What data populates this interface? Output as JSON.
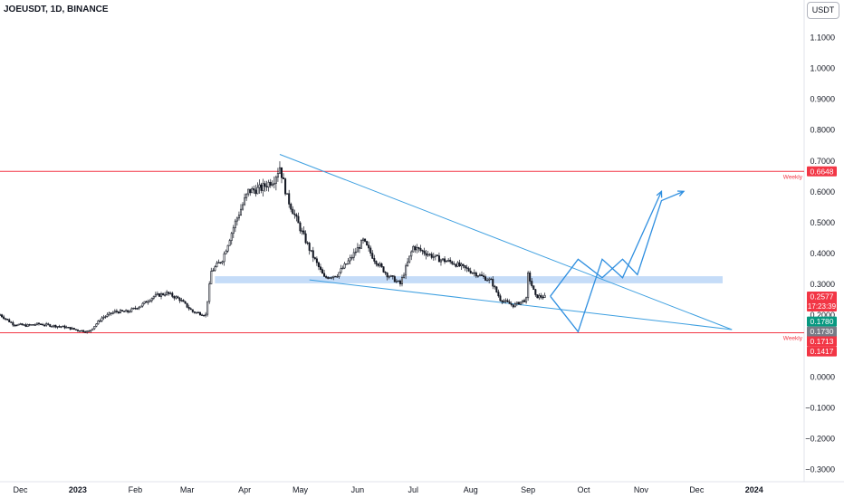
{
  "header": {
    "symbol": "JOEUSDT, 1D, BINANCE",
    "unit": "USDT"
  },
  "chart_data": {
    "type": "candlestick",
    "y_axis": {
      "ticks": [
        1.1,
        1.0,
        0.9,
        0.8,
        0.7,
        0.6,
        0.5,
        0.4,
        0.3,
        0.2,
        0.0,
        -0.1,
        -0.2,
        -0.3
      ],
      "tick_labels": [
        "1.1000",
        "1.0000",
        "0.9000",
        "0.8000",
        "0.7000",
        "0.6000",
        "0.5000",
        "0.4000",
        "0.3000",
        "0.2000",
        "0.0000",
        "−0.1000",
        "−0.2000",
        "−0.3000"
      ],
      "range": [
        -0.33,
        1.15
      ]
    },
    "x_axis": {
      "labels": [
        "Dec",
        "2023",
        "Feb",
        "Mar",
        "Apr",
        "May",
        "Jun",
        "Jul",
        "Aug",
        "Sep",
        "Oct",
        "Nov",
        "Dec",
        "2024"
      ],
      "bold": [
        false,
        true,
        false,
        false,
        false,
        false,
        false,
        false,
        false,
        false,
        false,
        false,
        false,
        true
      ],
      "range": [
        "2022-11-20",
        "2024-01-28"
      ],
      "dates": [
        "2022-12-01",
        "2023-01-01",
        "2023-02-01",
        "2023-03-01",
        "2023-04-01",
        "2023-05-01",
        "2023-06-01",
        "2023-07-01",
        "2023-08-01",
        "2023-09-01",
        "2023-10-01",
        "2023-11-01",
        "2023-12-01",
        "2024-01-01"
      ]
    },
    "price_path": [
      [
        "2022-11-20",
        0.2
      ],
      [
        "2022-11-27",
        0.17
      ],
      [
        "2022-12-04",
        0.165
      ],
      [
        "2022-12-11",
        0.17
      ],
      [
        "2022-12-18",
        0.165
      ],
      [
        "2022-12-25",
        0.16
      ],
      [
        "2023-01-01",
        0.15
      ],
      [
        "2023-01-07",
        0.145
      ],
      [
        "2023-01-14",
        0.19
      ],
      [
        "2023-01-21",
        0.21
      ],
      [
        "2023-01-28",
        0.21
      ],
      [
        "2023-02-04",
        0.23
      ],
      [
        "2023-02-11",
        0.26
      ],
      [
        "2023-02-18",
        0.27
      ],
      [
        "2023-02-25",
        0.25
      ],
      [
        "2023-03-04",
        0.21
      ],
      [
        "2023-03-11",
        0.2
      ],
      [
        "2023-03-14",
        0.34
      ],
      [
        "2023-03-20",
        0.38
      ],
      [
        "2023-03-27",
        0.5
      ],
      [
        "2023-04-03",
        0.6
      ],
      [
        "2023-04-10",
        0.61
      ],
      [
        "2023-04-17",
        0.64
      ],
      [
        "2023-04-20",
        0.68
      ],
      [
        "2023-04-24",
        0.58
      ],
      [
        "2023-05-01",
        0.48
      ],
      [
        "2023-05-07",
        0.4
      ],
      [
        "2023-05-14",
        0.32
      ],
      [
        "2023-05-21",
        0.33
      ],
      [
        "2023-05-28",
        0.38
      ],
      [
        "2023-06-04",
        0.44
      ],
      [
        "2023-06-10",
        0.38
      ],
      [
        "2023-06-17",
        0.33
      ],
      [
        "2023-06-24",
        0.3
      ],
      [
        "2023-07-01",
        0.42
      ],
      [
        "2023-07-08",
        0.4
      ],
      [
        "2023-07-15",
        0.38
      ],
      [
        "2023-07-22",
        0.37
      ],
      [
        "2023-07-29",
        0.35
      ],
      [
        "2023-08-05",
        0.33
      ],
      [
        "2023-08-12",
        0.31
      ],
      [
        "2023-08-17",
        0.25
      ],
      [
        "2023-08-24",
        0.23
      ],
      [
        "2023-08-31",
        0.25
      ],
      [
        "2023-09-01",
        0.33
      ],
      [
        "2023-09-05",
        0.26
      ],
      [
        "2023-09-10",
        0.258
      ]
    ],
    "last_date": "2023-09-10",
    "horizontal_lines": [
      {
        "label": "Weekly",
        "value": 0.6648,
        "color": "#f23645",
        "badge": "0.6648"
      },
      {
        "label": "Weekly",
        "value": 0.1417,
        "color": "#f23645",
        "badge": "0.1417"
      }
    ],
    "zone": {
      "from": 0.302,
      "to": 0.325,
      "start": "2023-03-16",
      "end": "2023-12-15",
      "color": "#bbd6f7"
    },
    "trendlines": [
      {
        "from": [
          "2023-04-20",
          0.72
        ],
        "to": [
          "2023-12-20",
          0.152
        ],
        "color": "#3d9fe0"
      },
      {
        "from": [
          "2023-05-06",
          0.313
        ],
        "to": [
          "2023-12-20",
          0.152
        ],
        "color": "#3d9fe0"
      }
    ],
    "projections": [
      {
        "points": [
          [
            "2023-09-13",
            0.26
          ],
          [
            "2023-09-28",
            0.145
          ],
          [
            "2023-10-11",
            0.38
          ],
          [
            "2023-10-22",
            0.32
          ],
          [
            "2023-11-12",
            0.6
          ]
        ],
        "color": "#2f8fe0"
      },
      {
        "points": [
          [
            "2023-09-13",
            0.26
          ],
          [
            "2023-09-28",
            0.38
          ],
          [
            "2023-10-11",
            0.32
          ],
          [
            "2023-10-22",
            0.38
          ],
          [
            "2023-10-30",
            0.33
          ],
          [
            "2023-11-12",
            0.57
          ],
          [
            "2023-11-24",
            0.6
          ]
        ],
        "color": "#2f8fe0"
      }
    ],
    "price_badges": [
      {
        "value": 0.2577,
        "text": "0.2577",
        "sub": "17:23:39",
        "color": "#f23645"
      },
      {
        "value": 0.178,
        "text": "0.1780",
        "color": "#089981"
      },
      {
        "value": 0.173,
        "text": "0.1730",
        "color": "#787b86"
      },
      {
        "value": 0.1713,
        "text": "0.1713",
        "color": "#f23645"
      }
    ],
    "colors": {
      "up": "#ffffff",
      "down": "#131722",
      "axis_text": "#131722"
    }
  }
}
